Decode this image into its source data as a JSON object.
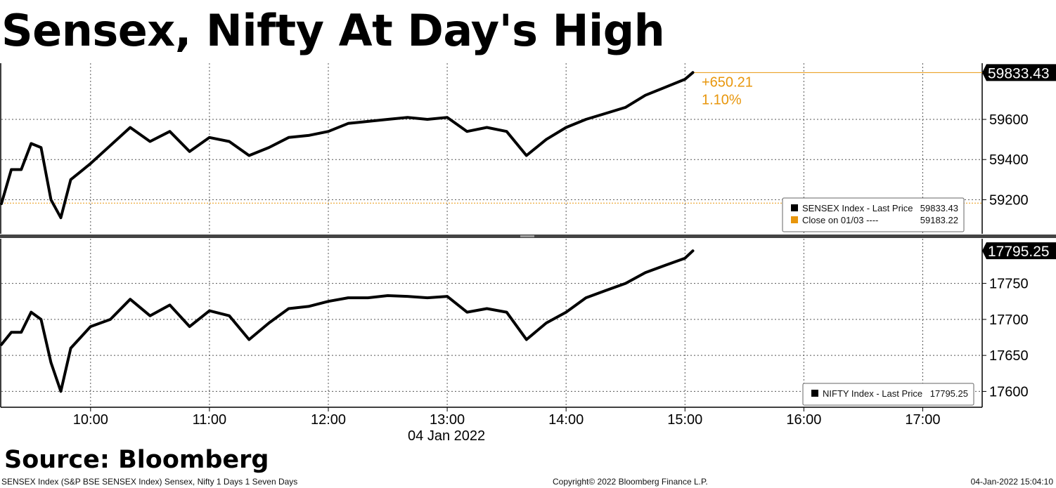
{
  "title": "Sensex, Nifty At Day's High",
  "source": "Source: Bloomberg",
  "footer": {
    "left": "SENSEX Index (S&P BSE SENSEX Index) Sensex, Nifty 1 Days 1 Seven Days",
    "center": "Copyright© 2022 Bloomberg Finance L.P.",
    "right": "04-Jan-2022 15:04:10"
  },
  "colors": {
    "line": "#000000",
    "accent": "#e8960c",
    "grid": "#555555",
    "divider": "#444444"
  },
  "chart_data": [
    {
      "type": "line",
      "name": "SENSEX",
      "x_ticks": [
        "10:00",
        "11:00",
        "12:00",
        "13:00",
        "14:00",
        "15:00",
        "16:00",
        "17:00"
      ],
      "x_date": "04 Jan 2022",
      "y_ticks": [
        59200,
        59400,
        59600
      ],
      "ylim": [
        59030,
        59880
      ],
      "grid": true,
      "last_value_label": "59833.43",
      "change_label": "+650.21",
      "change_pct_label": "1.10%",
      "reference_line": 59183.22,
      "last_value": 59833.43,
      "legend": {
        "placement": "bottom-right",
        "entries": [
          {
            "label": "SENSEX Index - Last Price",
            "value": "59833.43",
            "color": "#000000"
          },
          {
            "label": "Close on 01/03 ----",
            "value": "59183.22",
            "color": "#e8960c"
          }
        ]
      },
      "series": [
        {
          "x": [
            "09:15",
            "09:20",
            "09:25",
            "09:30",
            "09:35",
            "09:40",
            "09:45",
            "09:50",
            "09:55",
            "10:00",
            "10:10",
            "10:20",
            "10:30",
            "10:40",
            "10:50",
            "11:00",
            "11:10",
            "11:20",
            "11:30",
            "11:40",
            "11:50",
            "12:00",
            "12:10",
            "12:20",
            "12:30",
            "12:40",
            "12:50",
            "13:00",
            "13:10",
            "13:20",
            "13:30",
            "13:40",
            "13:50",
            "14:00",
            "14:10",
            "14:20",
            "14:30",
            "14:40",
            "14:50",
            "15:00",
            "15:04"
          ],
          "y": [
            59180,
            59350,
            59350,
            59480,
            59460,
            59200,
            59110,
            59300,
            59340,
            59380,
            59470,
            59560,
            59490,
            59540,
            59440,
            59510,
            59490,
            59420,
            59460,
            59510,
            59520,
            59540,
            59580,
            59590,
            59600,
            59610,
            59600,
            59610,
            59540,
            59560,
            59540,
            59420,
            59500,
            59560,
            59600,
            59630,
            59660,
            59720,
            59760,
            59800,
            59833.43
          ]
        }
      ]
    },
    {
      "type": "line",
      "name": "NIFTY",
      "x_ticks": [
        "10:00",
        "11:00",
        "12:00",
        "13:00",
        "14:00",
        "15:00",
        "16:00",
        "17:00"
      ],
      "x_date": "04 Jan 2022",
      "y_ticks": [
        17600,
        17650,
        17700,
        17750
      ],
      "ylim": [
        17578,
        17812
      ],
      "grid": true,
      "last_value_label": "17795.25",
      "last_value": 17795.25,
      "legend": {
        "placement": "bottom-right",
        "entries": [
          {
            "label": "NIFTY Index - Last Price",
            "value": "17795.25",
            "color": "#000000"
          }
        ]
      },
      "series": [
        {
          "x": [
            "09:15",
            "09:20",
            "09:25",
            "09:30",
            "09:35",
            "09:40",
            "09:45",
            "09:50",
            "09:55",
            "10:00",
            "10:10",
            "10:20",
            "10:30",
            "10:40",
            "10:50",
            "11:00",
            "11:10",
            "11:20",
            "11:30",
            "11:40",
            "11:50",
            "12:00",
            "12:10",
            "12:20",
            "12:30",
            "12:40",
            "12:50",
            "13:00",
            "13:10",
            "13:20",
            "13:30",
            "13:40",
            "13:50",
            "14:00",
            "14:10",
            "14:20",
            "14:30",
            "14:40",
            "14:50",
            "15:00",
            "15:04"
          ],
          "y": [
            17665,
            17682,
            17682,
            17710,
            17700,
            17640,
            17600,
            17660,
            17675,
            17690,
            17700,
            17728,
            17705,
            17720,
            17690,
            17712,
            17705,
            17672,
            17695,
            17715,
            17718,
            17725,
            17730,
            17730,
            17733,
            17732,
            17730,
            17732,
            17710,
            17715,
            17710,
            17672,
            17695,
            17710,
            17730,
            17740,
            17750,
            17765,
            17775,
            17785,
            17795.25
          ]
        }
      ]
    }
  ]
}
